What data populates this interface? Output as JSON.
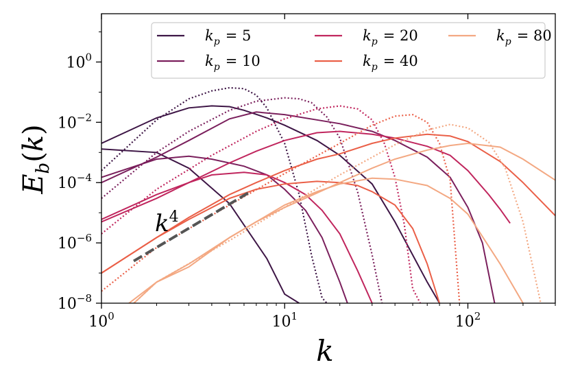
{
  "chart_data": {
    "type": "line",
    "xlabel": "k",
    "ylabel": "E_b(k)",
    "xscale": "log",
    "yscale": "log",
    "xlim": [
      1,
      300
    ],
    "ylim": [
      1e-08,
      40
    ],
    "x_ticks": [
      {
        "value": 1,
        "base": "10",
        "exp": "0"
      },
      {
        "value": 10,
        "base": "10",
        "exp": "1"
      },
      {
        "value": 100,
        "base": "10",
        "exp": "2"
      }
    ],
    "y_ticks": [
      {
        "value": 1e-08,
        "base": "10",
        "exp": "−8"
      },
      {
        "value": 1e-06,
        "base": "10",
        "exp": "−6"
      },
      {
        "value": 0.0001,
        "base": "10",
        "exp": "−4"
      },
      {
        "value": 0.01,
        "base": "10",
        "exp": "−2"
      },
      {
        "value": 1,
        "base": "10",
        "exp": "0"
      }
    ],
    "legend_position": "top-right",
    "annotation": {
      "text": "k",
      "sup": "4",
      "ref_line": {
        "x": [
          1.5,
          6.5
        ],
        "y": [
          2.5e-07,
          5e-05
        ]
      }
    },
    "series": [
      {
        "name": "k_p = 5",
        "legend_sub": "p",
        "legend_value": "= 5",
        "color": "#3d1545",
        "dotted": {
          "x": [
            1,
            2,
            3,
            4,
            5,
            6,
            7,
            8,
            10,
            12,
            14,
            16,
            17
          ],
          "y": [
            0.00025,
            0.012,
            0.06,
            0.11,
            0.14,
            0.13,
            0.08,
            0.03,
            0.002,
            4e-05,
            4e-07,
            1.5e-08,
            1e-08
          ]
        },
        "early": {
          "x": [
            1,
            2,
            3,
            5,
            8,
            10,
            12
          ],
          "y": [
            0.0013,
            0.001,
            0.0003,
            2e-05,
            3e-07,
            2e-08,
            1e-08
          ]
        },
        "late": {
          "x": [
            1,
            2,
            3,
            4,
            5,
            6,
            8,
            10,
            15,
            20,
            30,
            40,
            60,
            70
          ],
          "y": [
            0.002,
            0.014,
            0.03,
            0.035,
            0.033,
            0.025,
            0.014,
            0.008,
            0.0025,
            0.0008,
            9e-05,
            5e-06,
            5e-08,
            1e-08
          ]
        }
      },
      {
        "name": "k_p = 10",
        "legend_sub": "p",
        "legend_value": "= 10",
        "color": "#7a1f5c",
        "dotted": {
          "x": [
            1,
            2,
            3,
            5,
            7,
            10,
            12,
            14,
            17,
            20,
            25,
            30,
            34
          ],
          "y": [
            3e-05,
            0.001,
            0.005,
            0.025,
            0.05,
            0.065,
            0.06,
            0.045,
            0.015,
            0.003,
            5e-05,
            4e-07,
            1e-08
          ]
        },
        "early": {
          "x": [
            1,
            2,
            3,
            4,
            6,
            8,
            10,
            13,
            16,
            20,
            22
          ],
          "y": [
            0.00015,
            0.0006,
            0.00075,
            0.0006,
            0.00035,
            0.00018,
            6e-05,
            1.2e-05,
            1.5e-06,
            5e-08,
            1e-08
          ]
        },
        "late": {
          "x": [
            1,
            2,
            3,
            5,
            7,
            10,
            15,
            20,
            30,
            40,
            60,
            80,
            100,
            120,
            140
          ],
          "y": [
            0.0001,
            0.0007,
            0.0025,
            0.013,
            0.022,
            0.018,
            0.012,
            0.009,
            0.005,
            0.0025,
            0.0007,
            0.00015,
            1.5e-05,
            1e-06,
            1e-08
          ]
        }
      },
      {
        "name": "k_p = 20",
        "legend_sub": "p",
        "legend_value": "= 20",
        "color": "#c0255d",
        "dotted": {
          "x": [
            1,
            2,
            4,
            7,
            10,
            15,
            20,
            25,
            30,
            35,
            40,
            45,
            50,
            55
          ],
          "y": [
            2e-06,
            6e-05,
            0.0008,
            0.005,
            0.013,
            0.028,
            0.035,
            0.028,
            0.012,
            0.002,
            0.00015,
            4e-06,
            3e-08,
            1e-08
          ]
        },
        "early": {
          "x": [
            1,
            2,
            3,
            4,
            6,
            8,
            10,
            13,
            16,
            20,
            25,
            30
          ],
          "y": [
            6e-06,
            4e-05,
            0.0001,
            0.00018,
            0.00022,
            0.00018,
            0.0001,
            4e-05,
            1.2e-05,
            2e-06,
            1.2e-07,
            1e-08
          ]
        },
        "late": {
          "x": [
            1,
            2,
            3,
            5,
            7,
            10,
            15,
            20,
            30,
            40,
            60,
            80,
            100,
            130,
            150,
            170
          ],
          "y": [
            5e-06,
            3e-05,
            0.0001,
            0.00045,
            0.0011,
            0.0025,
            0.0045,
            0.005,
            0.004,
            0.003,
            0.0016,
            0.0008,
            0.00025,
            4e-05,
            1.3e-05,
            4.5e-06
          ]
        }
      },
      {
        "name": "k_p = 40",
        "legend_sub": "p",
        "legend_value": "= 40",
        "color": "#ea5f47",
        "dotted": {
          "x": [
            1,
            2,
            5,
            10,
            20,
            30,
            40,
            50,
            60,
            70,
            80,
            90
          ],
          "y": [
            2.5e-08,
            7e-07,
            1.8e-05,
            0.0002,
            0.002,
            0.008,
            0.016,
            0.018,
            0.01,
            0.002,
            0.00012,
            1e-08
          ]
        },
        "early": {
          "x": [
            1,
            2,
            3,
            5,
            7,
            10,
            15,
            20,
            25,
            30,
            40,
            50,
            60,
            70
          ],
          "y": [
            1e-07,
            1.5e-06,
            6e-06,
            3e-05,
            6e-05,
            9e-05,
            0.00011,
            0.0001,
            8e-05,
            5e-05,
            1.8e-05,
            3e-06,
            2e-07,
            1e-08
          ]
        },
        "late": {
          "x": [
            1,
            2,
            3,
            5,
            7,
            10,
            15,
            20,
            30,
            40,
            60,
            80,
            100,
            150,
            200,
            300
          ],
          "y": [
            1e-07,
            1.5e-06,
            7e-06,
            4e-05,
            0.0001,
            0.00025,
            0.0006,
            0.0009,
            0.002,
            0.003,
            0.004,
            0.0035,
            0.0023,
            0.0005,
            0.0001,
            8e-06
          ]
        }
      },
      {
        "name": "k_p = 80",
        "legend_sub": "p",
        "legend_value": "= 80",
        "color": "#f3a882",
        "dotted": {
          "x": [
            1,
            2,
            5,
            10,
            20,
            40,
            60,
            80,
            100,
            130,
            160,
            200,
            250
          ],
          "y": [
            1e-09,
            5e-08,
            1.2e-06,
            1.5e-05,
            0.00018,
            0.0018,
            0.0055,
            0.0085,
            0.0065,
            0.0022,
            0.0003,
            5e-06,
            1e-08
          ]
        },
        "early": {
          "x": [
            1,
            2,
            3,
            5,
            7,
            10,
            15,
            20,
            30,
            40,
            60,
            80,
            100,
            150,
            200
          ],
          "y": [
            2e-09,
            5e-08,
            2e-07,
            1.5e-06,
            5e-06,
            1.8e-05,
            5e-05,
            9e-05,
            0.00014,
            0.00013,
            8e-05,
            3e-05,
            9e-06,
            2e-07,
            1e-08
          ]
        },
        "late": {
          "x": [
            1,
            2,
            3,
            5,
            7,
            10,
            15,
            20,
            30,
            40,
            60,
            80,
            100,
            150,
            200,
            300
          ],
          "y": [
            1e-09,
            5e-08,
            1.6e-07,
            1.5e-06,
            5e-06,
            1.5e-05,
            4.5e-05,
            0.0001,
            0.0003,
            0.0006,
            0.0012,
            0.0017,
            0.002,
            0.0015,
            0.0006,
            0.00012
          ]
        }
      }
    ]
  }
}
